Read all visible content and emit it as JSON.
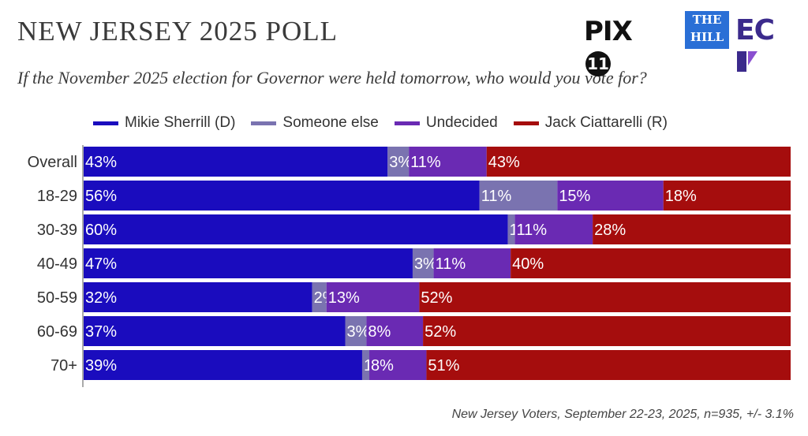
{
  "header": {
    "title": "NEW JERSEY 2025 POLL",
    "subtitle": "If the November 2025 election for Governor were held tomorrow, who would you vote for?"
  },
  "logos": {
    "pix": "PIX",
    "pix_circle": "11",
    "hill_line1": "THE",
    "hill_line2": "HILL",
    "ecp": "EC"
  },
  "footnote": "New Jersey Voters, September 22-23, 2025, n=935, +/- 3.1%",
  "chart_data": {
    "type": "bar",
    "orientation": "horizontal",
    "stacked": true,
    "percent": true,
    "categories": [
      "Overall",
      "18-29",
      "30-39",
      "40-49",
      "50-59",
      "60-69",
      "70+"
    ],
    "series": [
      {
        "name": "Mikie Sherrill (D)",
        "color": "#1a0cbe",
        "values": [
          43,
          56,
          60,
          47,
          32,
          37,
          39
        ]
      },
      {
        "name": "Someone else",
        "color": "#7a73b0",
        "values": [
          3,
          11,
          1,
          3,
          2,
          3,
          1
        ]
      },
      {
        "name": "Undecided",
        "color": "#6a2ab3",
        "values": [
          11,
          15,
          11,
          11,
          13,
          8,
          8
        ]
      },
      {
        "name": "Jack Ciattarelli (R)",
        "color": "#a50d0d",
        "values": [
          43,
          18,
          28,
          40,
          52,
          52,
          51
        ]
      }
    ],
    "legend": "top",
    "grid": false
  }
}
